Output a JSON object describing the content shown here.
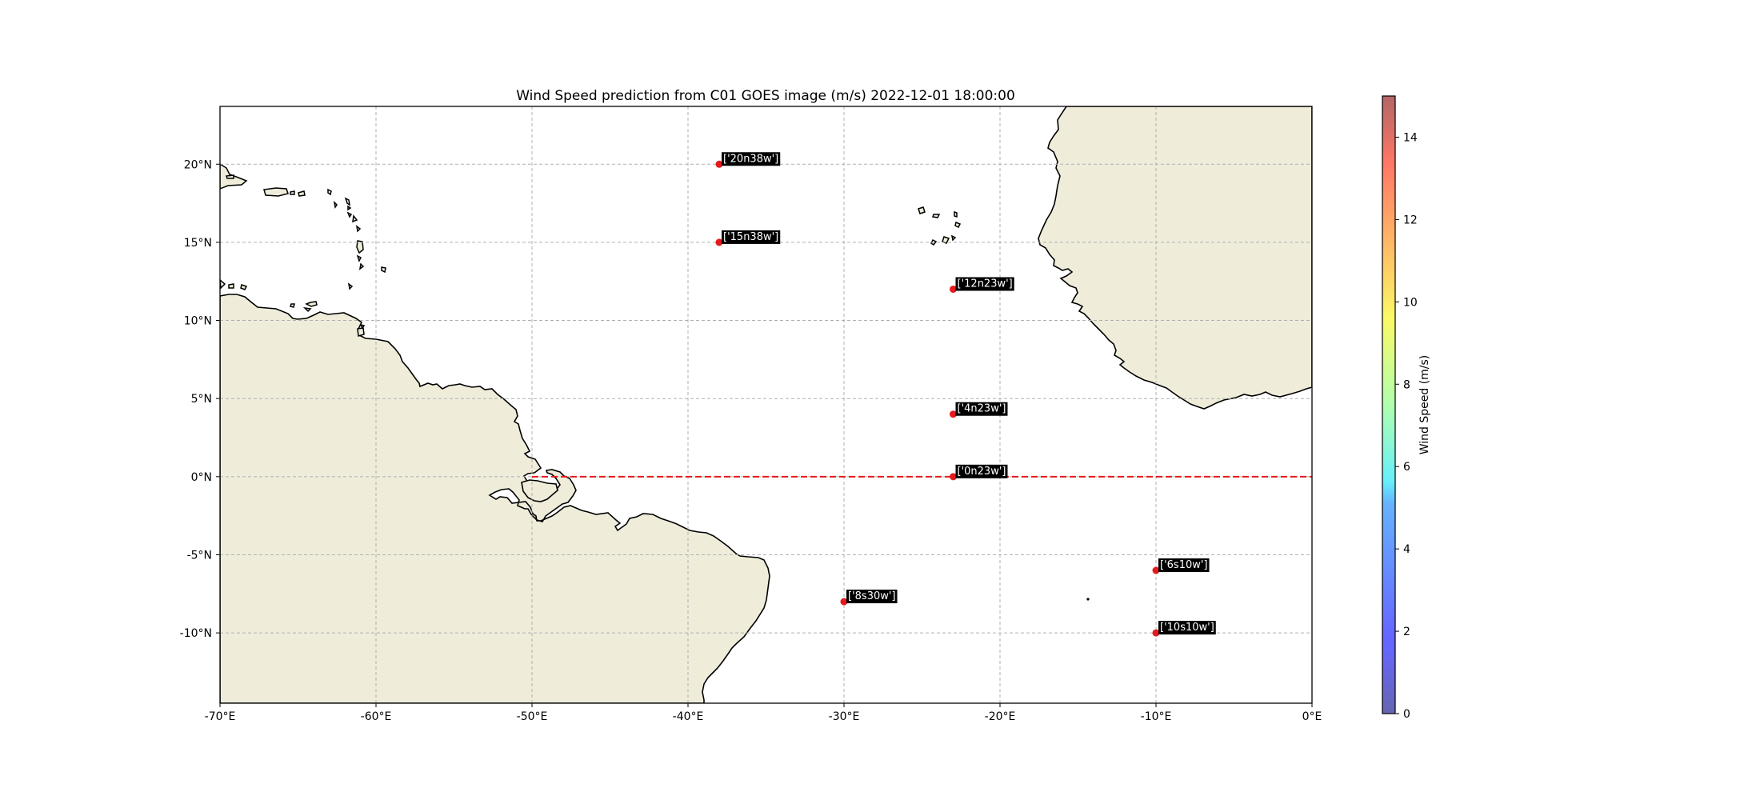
{
  "figure": {
    "title": "Wind Speed prediction from C01 GOES image (m/s) 2022-12-01 18:00:00"
  },
  "map": {
    "lon_range": [
      -70,
      0
    ],
    "lat_range": [
      -14.5,
      23.7
    ],
    "x_ticks": [
      {
        "value": -70,
        "label": "-70°E"
      },
      {
        "value": -60,
        "label": "-60°E"
      },
      {
        "value": -50,
        "label": "-50°E"
      },
      {
        "value": -40,
        "label": "-40°E"
      },
      {
        "value": -30,
        "label": "-30°E"
      },
      {
        "value": -20,
        "label": "-20°E"
      },
      {
        "value": -10,
        "label": "-10°E"
      },
      {
        "value": 0,
        "label": "0°E"
      }
    ],
    "y_ticks": [
      {
        "value": 20,
        "label": "20°N"
      },
      {
        "value": 15,
        "label": "15°N"
      },
      {
        "value": 10,
        "label": "10°N"
      },
      {
        "value": 5,
        "label": "5°N"
      },
      {
        "value": 0,
        "label": "0°N"
      },
      {
        "value": -5,
        "label": "-5°N"
      },
      {
        "value": -10,
        "label": "-10°N"
      }
    ],
    "gridlines": true,
    "land_color": "#efedda",
    "coast_color": "#000000",
    "equator_line": {
      "lat": 0,
      "lon_start": -50,
      "color": "#e41a1c",
      "style": "dashed"
    },
    "marker_color": "#e41a1c",
    "stations": [
      {
        "name": "['20n38w']",
        "lon": -38,
        "lat": 20
      },
      {
        "name": "['15n38w']",
        "lon": -38,
        "lat": 15
      },
      {
        "name": "['12n23w']",
        "lon": -23,
        "lat": 12
      },
      {
        "name": "['4n23w']",
        "lon": -23,
        "lat": 4
      },
      {
        "name": "['0n23w']",
        "lon": -23,
        "lat": 0
      },
      {
        "name": "['6s10w']",
        "lon": -10,
        "lat": -6
      },
      {
        "name": "['8s30w']",
        "lon": -30,
        "lat": -8
      },
      {
        "name": "['10s10w']",
        "lon": -10,
        "lat": -10
      }
    ]
  },
  "colorbar": {
    "label": "Wind Speed (m/s)",
    "range": [
      0,
      15
    ],
    "colormap": "jet",
    "alpha": 0.6,
    "ticks": [
      {
        "value": 0,
        "label": "0"
      },
      {
        "value": 2,
        "label": "2"
      },
      {
        "value": 4,
        "label": "4"
      },
      {
        "value": 6,
        "label": "6"
      },
      {
        "value": 8,
        "label": "8"
      },
      {
        "value": 10,
        "label": "10"
      },
      {
        "value": 12,
        "label": "12"
      },
      {
        "value": 14,
        "label": "14"
      }
    ]
  }
}
